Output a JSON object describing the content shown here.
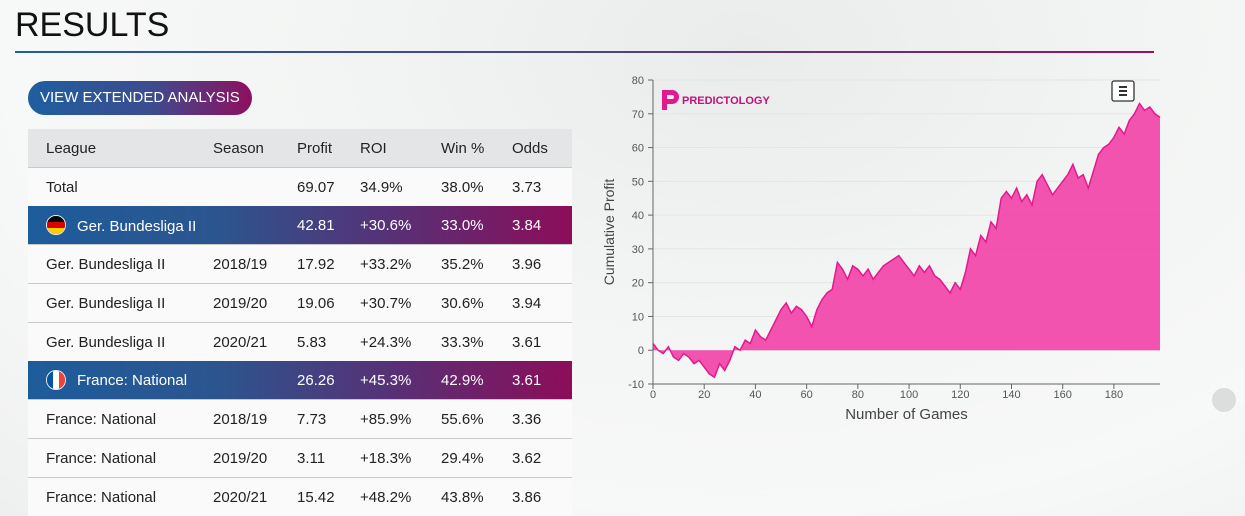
{
  "page": {
    "title": "RESULTS"
  },
  "button": {
    "label": "VIEW EXTENDED ANALYSIS"
  },
  "colors": {
    "accent_blue": "#1e5f9f",
    "accent_magenta": "#8f0f5f",
    "chart_fill": "#f04aab",
    "chart_line": "#e3198f"
  },
  "table": {
    "headers": {
      "league": "League",
      "season": "Season",
      "profit": "Profit",
      "roi": "ROI",
      "win": "Win %",
      "odds": "Odds"
    },
    "total": {
      "league": "Total",
      "season": "",
      "profit": "69.07",
      "roi": "34.9%",
      "win": "38.0%",
      "odds": "3.73"
    },
    "rows": [
      {
        "league": "Ger. Bundesliga II",
        "season": "",
        "profit": "42.81",
        "roi": "+30.6%",
        "win": "33.0%",
        "odds": "3.84",
        "group": true,
        "flag": "germany-flag-icon"
      },
      {
        "league": "Ger. Bundesliga II",
        "season": "2018/19",
        "profit": "17.92",
        "roi": "+33.2%",
        "win": "35.2%",
        "odds": "3.96"
      },
      {
        "league": "Ger. Bundesliga II",
        "season": "2019/20",
        "profit": "19.06",
        "roi": "+30.7%",
        "win": "30.6%",
        "odds": "3.94"
      },
      {
        "league": "Ger. Bundesliga II",
        "season": "2020/21",
        "profit": "5.83",
        "roi": "+24.3%",
        "win": "33.3%",
        "odds": "3.61"
      },
      {
        "league": "France: National",
        "season": "",
        "profit": "26.26",
        "roi": "+45.3%",
        "win": "42.9%",
        "odds": "3.61",
        "group": true,
        "flag": "france-flag-icon"
      },
      {
        "league": "France: National",
        "season": "2018/19",
        "profit": "7.73",
        "roi": "+85.9%",
        "win": "55.6%",
        "odds": "3.36"
      },
      {
        "league": "France: National",
        "season": "2019/20",
        "profit": "3.11",
        "roi": "+18.3%",
        "win": "29.4%",
        "odds": "3.62"
      },
      {
        "league": "France: National",
        "season": "2020/21",
        "profit": "15.42",
        "roi": "+48.2%",
        "win": "43.8%",
        "odds": "3.86"
      }
    ]
  },
  "chart_data": {
    "type": "area",
    "title": "",
    "brand": "PREDICTOLOGY",
    "menu_icon": "hamburger-menu-icon",
    "xlabel": "Number of Games",
    "ylabel": "Cumulative Profit",
    "xlim": [
      0,
      198
    ],
    "ylim": [
      -10,
      80
    ],
    "xticks": [
      0,
      20,
      40,
      60,
      80,
      100,
      120,
      140,
      160,
      180
    ],
    "yticks": [
      -10,
      0,
      10,
      20,
      30,
      40,
      50,
      60,
      70,
      80
    ],
    "grid": true,
    "legend": "none",
    "series": [
      {
        "x": [
          0,
          2,
          4,
          6,
          8,
          10,
          12,
          14,
          16,
          18,
          20,
          22,
          24,
          26,
          28,
          30,
          32,
          34,
          36,
          38,
          40,
          42,
          44,
          46,
          48,
          50,
          52,
          54,
          56,
          58,
          60,
          62,
          64,
          66,
          68,
          70,
          72,
          74,
          76,
          78,
          80,
          82,
          84,
          86,
          88,
          90,
          92,
          94,
          96,
          98,
          100,
          102,
          104,
          106,
          108,
          110,
          112,
          114,
          116,
          118,
          120,
          122,
          124,
          126,
          128,
          130,
          132,
          134,
          136,
          138,
          140,
          142,
          144,
          146,
          148,
          150,
          152,
          154,
          156,
          158,
          160,
          162,
          164,
          166,
          168,
          170,
          172,
          174,
          176,
          178,
          180,
          182,
          184,
          186,
          188,
          190,
          192,
          194,
          196,
          198
        ],
        "values": [
          2,
          0,
          -1,
          1,
          -2,
          -3,
          -1,
          -2,
          -4,
          -3,
          -5,
          -7,
          -8,
          -4,
          -6,
          -3,
          1,
          0,
          3,
          2,
          6,
          4,
          3,
          6,
          9,
          12,
          14,
          11,
          13,
          12,
          10,
          7,
          12,
          15,
          17,
          18,
          26,
          24,
          21,
          25,
          24,
          22,
          24,
          21,
          23,
          25,
          26,
          27,
          28,
          26,
          24,
          22,
          25,
          23,
          25,
          22,
          21,
          19,
          17,
          20,
          18,
          23,
          30,
          28,
          34,
          32,
          38,
          36,
          45,
          47,
          45,
          48,
          44,
          46,
          43,
          50,
          52,
          49,
          46,
          48,
          50,
          52,
          55,
          51,
          52,
          48,
          53,
          58,
          60,
          61,
          63,
          66,
          64,
          68,
          70,
          73,
          71,
          72,
          70,
          69
        ]
      }
    ]
  }
}
